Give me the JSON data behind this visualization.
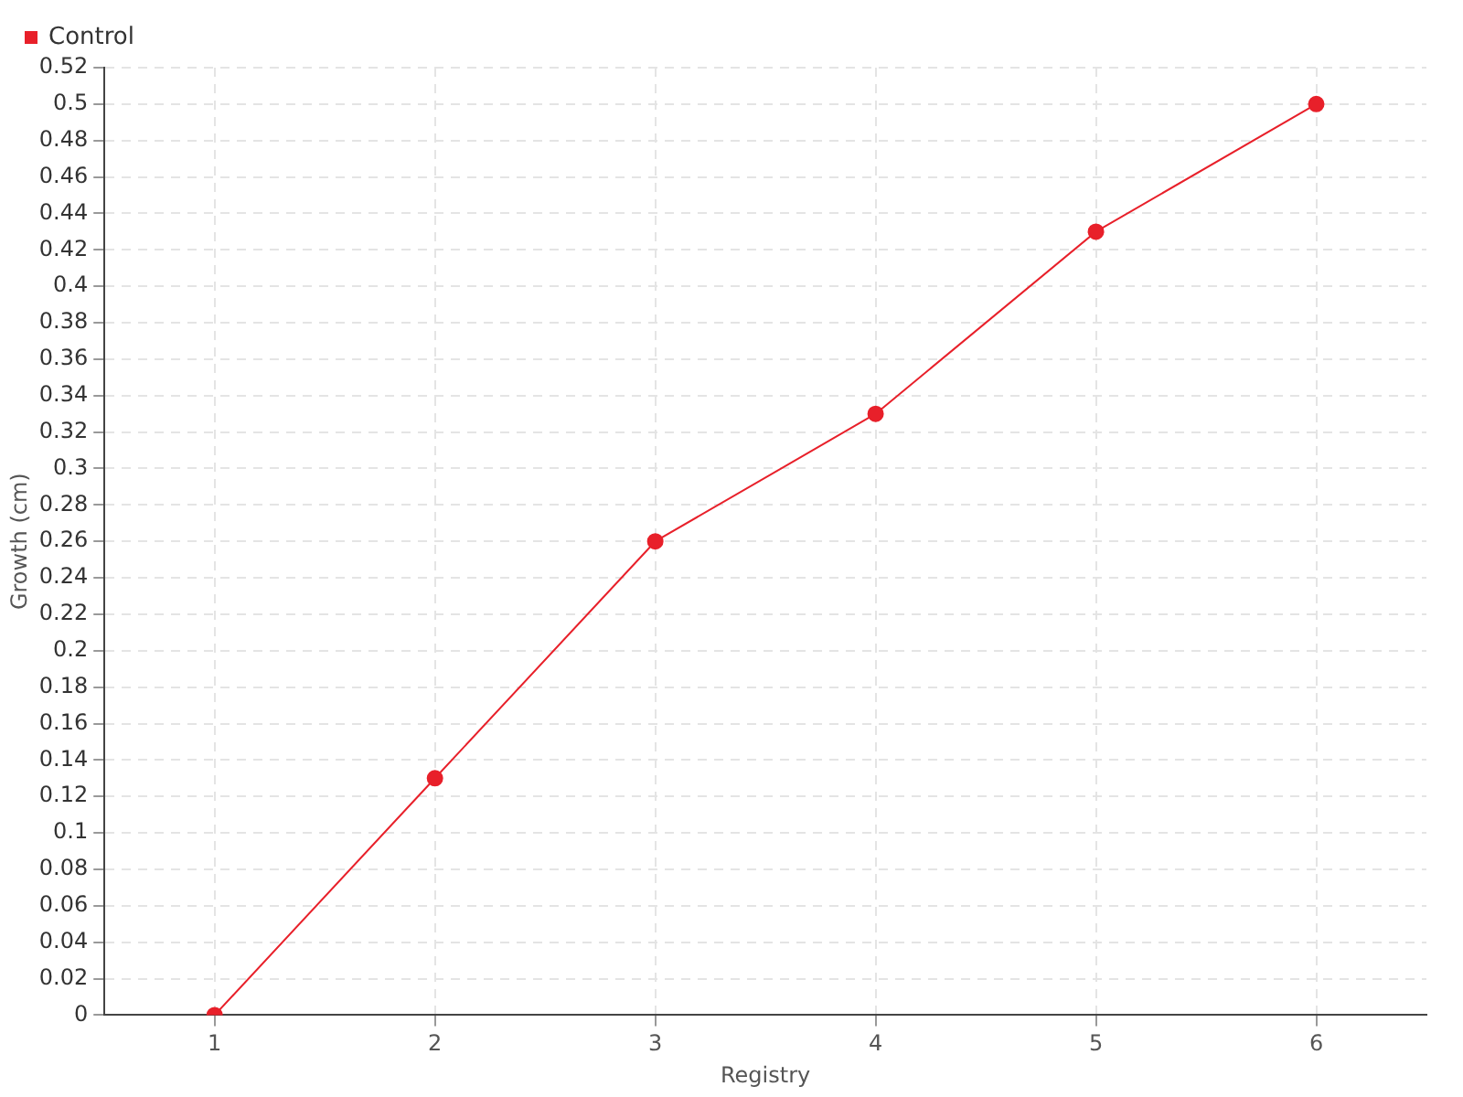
{
  "chart_data": {
    "type": "line",
    "xlabel": "Registry",
    "ylabel": "Growth (cm)",
    "categories": [
      "1",
      "2",
      "3",
      "4",
      "5",
      "6"
    ],
    "series": [
      {
        "name": "Control",
        "color": "#e8202a",
        "values": [
          0,
          0.13,
          0.26,
          0.33,
          0.43,
          0.5
        ]
      }
    ],
    "ylim": [
      0,
      0.52
    ],
    "yticks": [
      0,
      0.02,
      0.04,
      0.06,
      0.08,
      0.1,
      0.12,
      0.14,
      0.16,
      0.18,
      0.2,
      0.22,
      0.24,
      0.26,
      0.28,
      0.3,
      0.32,
      0.34,
      0.36,
      0.38,
      0.4,
      0.42,
      0.44,
      0.46,
      0.48,
      0.5,
      0.52
    ],
    "grid": true,
    "legend": "top left",
    "marker": "circle",
    "line_style": "solid"
  }
}
